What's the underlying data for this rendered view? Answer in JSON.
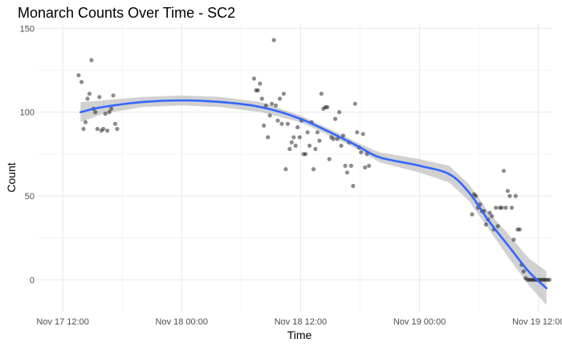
{
  "chart_data": {
    "type": "scatter",
    "title": "Monarch Counts Over Time - SC2",
    "xlabel": "Time",
    "ylabel": "Count",
    "x_unit": "hours",
    "x_ticks": [
      {
        "value": 0,
        "label": "Nov 17 12:00"
      },
      {
        "value": 12,
        "label": "Nov 18 00:00"
      },
      {
        "value": 24,
        "label": "Nov 18 12:00"
      },
      {
        "value": 36,
        "label": "Nov 19 00:00"
      },
      {
        "value": 48,
        "label": "Nov 19 12:00"
      }
    ],
    "y_ticks": [
      0,
      50,
      100,
      150
    ],
    "xlim": [
      -2.6,
      49.4
    ],
    "ylim": [
      -19,
      153
    ],
    "grid": true,
    "points": [
      [
        1.6,
        122
      ],
      [
        1.9,
        118
      ],
      [
        2.1,
        90
      ],
      [
        2.3,
        94
      ],
      [
        2.5,
        108
      ],
      [
        2.7,
        111
      ],
      [
        2.9,
        131
      ],
      [
        3.1,
        102
      ],
      [
        3.3,
        100
      ],
      [
        3.5,
        90
      ],
      [
        3.7,
        109
      ],
      [
        3.9,
        89
      ],
      [
        4.1,
        90
      ],
      [
        4.3,
        99
      ],
      [
        4.5,
        89
      ],
      [
        4.7,
        100
      ],
      [
        4.9,
        102
      ],
      [
        5.1,
        110
      ],
      [
        5.3,
        93
      ],
      [
        5.5,
        90
      ],
      [
        19.3,
        120
      ],
      [
        19.5,
        113
      ],
      [
        19.7,
        113
      ],
      [
        19.9,
        117
      ],
      [
        20.1,
        108
      ],
      [
        20.3,
        92
      ],
      [
        20.5,
        104
      ],
      [
        20.7,
        85
      ],
      [
        20.9,
        98
      ],
      [
        21.1,
        105
      ],
      [
        21.3,
        143
      ],
      [
        21.5,
        104
      ],
      [
        21.7,
        95
      ],
      [
        21.9,
        108
      ],
      [
        22.1,
        93
      ],
      [
        22.3,
        111
      ],
      [
        22.5,
        66
      ],
      [
        22.7,
        93
      ],
      [
        22.9,
        78
      ],
      [
        23.1,
        82
      ],
      [
        23.3,
        85
      ],
      [
        23.5,
        80
      ],
      [
        23.7,
        91
      ],
      [
        23.9,
        85
      ],
      [
        24.1,
        95
      ],
      [
        24.3,
        75
      ],
      [
        24.5,
        75
      ],
      [
        24.7,
        88
      ],
      [
        24.9,
        80
      ],
      [
        25.1,
        94
      ],
      [
        25.3,
        66
      ],
      [
        25.5,
        78
      ],
      [
        25.7,
        88
      ],
      [
        25.9,
        83
      ],
      [
        26.1,
        111
      ],
      [
        26.3,
        102
      ],
      [
        26.5,
        103
      ],
      [
        26.7,
        103
      ],
      [
        26.9,
        72
      ],
      [
        27.1,
        85
      ],
      [
        27.3,
        84
      ],
      [
        27.5,
        96
      ],
      [
        27.7,
        84
      ],
      [
        27.9,
        100
      ],
      [
        28.1,
        80
      ],
      [
        28.3,
        86
      ],
      [
        28.5,
        68
      ],
      [
        28.7,
        64
      ],
      [
        28.9,
        82
      ],
      [
        29.1,
        68
      ],
      [
        29.3,
        56
      ],
      [
        29.5,
        105
      ],
      [
        29.7,
        88
      ],
      [
        29.9,
        79
      ],
      [
        30.1,
        76
      ],
      [
        30.3,
        87
      ],
      [
        30.5,
        67
      ],
      [
        30.7,
        75
      ],
      [
        30.9,
        68
      ],
      [
        41.3,
        39
      ],
      [
        41.5,
        51
      ],
      [
        41.7,
        50
      ],
      [
        41.9,
        43
      ],
      [
        42.1,
        45
      ],
      [
        42.3,
        41
      ],
      [
        42.5,
        41
      ],
      [
        42.7,
        33
      ],
      [
        42.9,
        36
      ],
      [
        43.1,
        40
      ],
      [
        43.3,
        38
      ],
      [
        43.5,
        30
      ],
      [
        43.7,
        43
      ],
      [
        43.9,
        32
      ],
      [
        44.1,
        43
      ],
      [
        44.3,
        43
      ],
      [
        44.5,
        65
      ],
      [
        44.7,
        43
      ],
      [
        44.9,
        53
      ],
      [
        45.1,
        50
      ],
      [
        45.3,
        43
      ],
      [
        45.5,
        24
      ],
      [
        45.7,
        50
      ],
      [
        45.9,
        30
      ],
      [
        46.1,
        30
      ],
      [
        46.3,
        9
      ],
      [
        46.5,
        5
      ],
      [
        46.7,
        1
      ],
      [
        46.9,
        0
      ],
      [
        47.1,
        0
      ],
      [
        47.3,
        0
      ],
      [
        47.5,
        0
      ],
      [
        47.7,
        0
      ],
      [
        47.9,
        0
      ],
      [
        48.1,
        0
      ],
      [
        48.3,
        0
      ],
      [
        48.5,
        0
      ],
      [
        48.7,
        0
      ],
      [
        48.9,
        0
      ],
      [
        49.1,
        0
      ]
    ],
    "smooth_line": [
      [
        1.8,
        100
      ],
      [
        4,
        103
      ],
      [
        8,
        106
      ],
      [
        12,
        107
      ],
      [
        16,
        106
      ],
      [
        20,
        103
      ],
      [
        24,
        96
      ],
      [
        28,
        85
      ],
      [
        30,
        79
      ],
      [
        32,
        73
      ],
      [
        36,
        68
      ],
      [
        39,
        63
      ],
      [
        41,
        52
      ],
      [
        43,
        35
      ],
      [
        45,
        20
      ],
      [
        47,
        5
      ],
      [
        48.8,
        -5
      ]
    ],
    "ribbon": [
      [
        1.8,
        94,
        106
      ],
      [
        4,
        99,
        107
      ],
      [
        8,
        103,
        109
      ],
      [
        12,
        104,
        110
      ],
      [
        16,
        103,
        109
      ],
      [
        20,
        100,
        106
      ],
      [
        24,
        94,
        98
      ],
      [
        28,
        83,
        87
      ],
      [
        30,
        77,
        81
      ],
      [
        32,
        70,
        76
      ],
      [
        36,
        64,
        72
      ],
      [
        39,
        58,
        68
      ],
      [
        41,
        47,
        57
      ],
      [
        43,
        30,
        40
      ],
      [
        45,
        13,
        27
      ],
      [
        47,
        -3,
        13
      ],
      [
        48.8,
        -15,
        5
      ]
    ],
    "colors": {
      "point": "#000000",
      "point_opacity": 0.45,
      "line": "#3366ff",
      "ribbon": "#bdbdbd",
      "grid_major": "#ebebeb",
      "grid_minor": "#f5f5f5",
      "axis_text": "#4d4d4d"
    }
  }
}
